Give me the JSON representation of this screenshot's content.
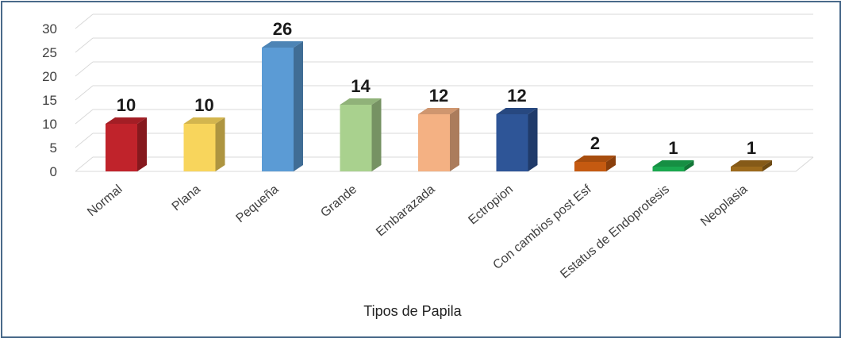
{
  "chart_data": {
    "type": "bar",
    "style": "3d-column",
    "categories": [
      "Normal",
      "Plana",
      "Pequeña",
      "Grande",
      "Embarazada",
      "Ectropion",
      "Con cambios post Esf",
      "Estatus de Endoprotesis",
      "Neoplasia"
    ],
    "values": [
      10,
      10,
      26,
      14,
      12,
      12,
      2,
      1,
      1
    ],
    "colors": [
      "#c0232b",
      "#f8d55c",
      "#5b9bd5",
      "#a9d18e",
      "#f4b183",
      "#2e5597",
      "#c55a11",
      "#1aa84f",
      "#9c6a1c"
    ],
    "xlabel": "Tipos de Papila",
    "ylabel": "",
    "title": "",
    "ylim": [
      0,
      30
    ],
    "yticks": [
      "0",
      "5",
      "10",
      "15",
      "20",
      "25",
      "30"
    ],
    "data_labels": [
      "10",
      "10",
      "26",
      "14",
      "12",
      "12",
      "2",
      "1",
      "1"
    ],
    "grid": true,
    "legend": "none"
  }
}
